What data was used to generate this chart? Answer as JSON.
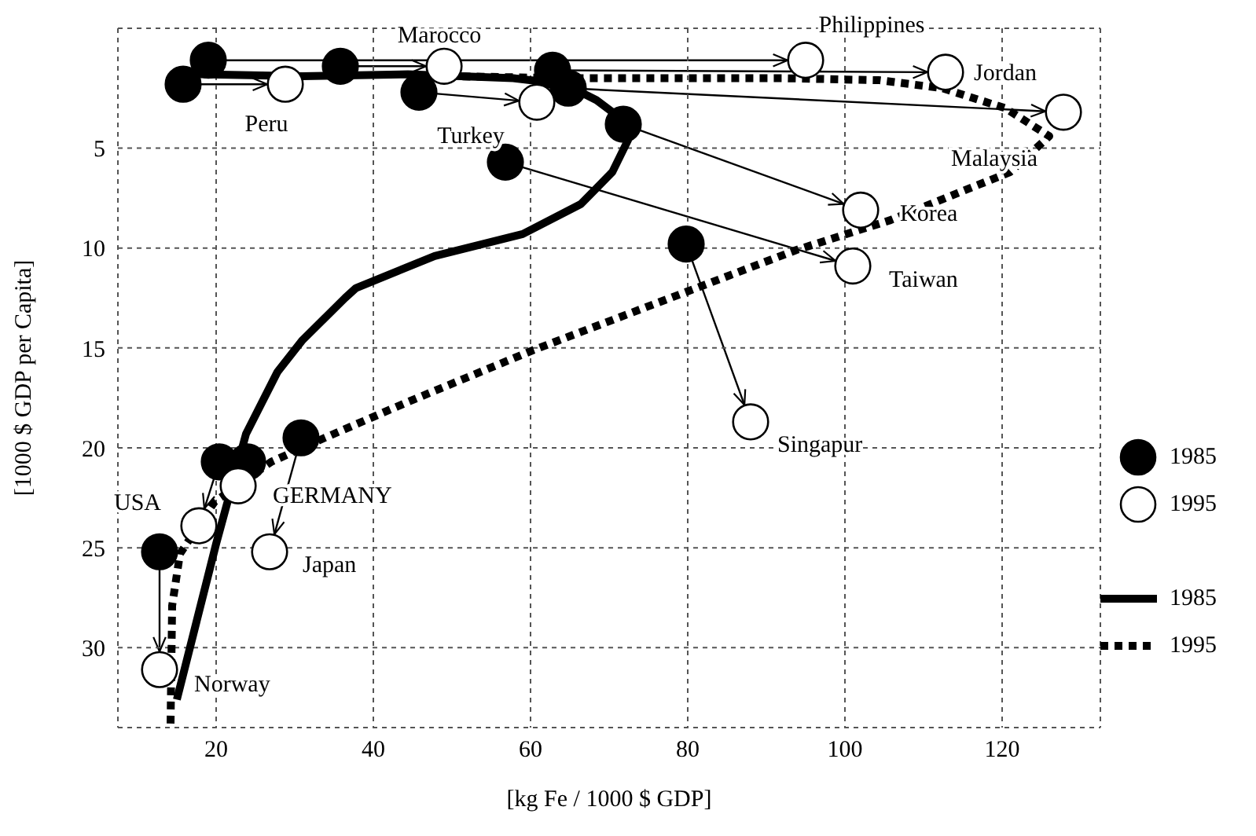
{
  "chart_data": {
    "type": "scatter",
    "xlabel": "[kg Fe / 1000 $ GDP]",
    "ylabel": "[1000 $ GDP per Capita]",
    "xlim": [
      7.5,
      132.5
    ],
    "xticks": [
      20,
      40,
      60,
      80,
      100,
      120
    ],
    "ylim": [
      34,
      -1
    ],
    "yticks": [
      5,
      10,
      15,
      20,
      25,
      30
    ],
    "grid": true,
    "legend": "right",
    "marker": "circle",
    "series": [
      {
        "name": "1985",
        "color": "#000000",
        "x": [
          19,
          15.8,
          35.8,
          45.8,
          62.8,
          64.8,
          71.8,
          56.8,
          79.8,
          30.8,
          20.4,
          24,
          12.8
        ],
        "values": [
          0.6,
          1.8,
          0.9,
          2.2,
          1.1,
          2,
          3.8,
          5.7,
          9.8,
          19.5,
          20.7,
          20.7,
          25.2
        ]
      },
      {
        "name": "1995",
        "color": "#ffffff",
        "x": [
          95,
          28.8,
          49,
          60.8,
          112.8,
          127.8,
          102,
          101,
          88,
          26.8,
          17.8,
          22.8,
          12.8
        ],
        "values": [
          0.6,
          1.8,
          0.9,
          2.7,
          1.2,
          3.2,
          8.1,
          10.9,
          18.7,
          25.2,
          23.9,
          21.9,
          31.1
        ],
        "value_labels": [
          "Philippines",
          "Peru",
          "Marocco",
          "Turkey",
          "Jordan",
          "Malaysia",
          "Korea",
          "Taiwan",
          "Singapur",
          "Japan",
          "USA",
          "GERMANY",
          "Norway"
        ]
      },
      {
        "name": "1985",
        "type": "line",
        "marker": "none",
        "line_style": "solid",
        "color": "#000000",
        "x": [
          15,
          20,
          23.8,
          27.8,
          31,
          36.4,
          37.8,
          47.8,
          59,
          66.4,
          70.4,
          72.4,
          71.8,
          68.4,
          64.4,
          57.8,
          44.4,
          31,
          17.8
        ],
        "values": [
          32.6,
          24.8,
          19.3,
          16.2,
          14.6,
          12.5,
          12,
          10.4,
          9.3,
          7.8,
          6.2,
          4.6,
          3.6,
          2.6,
          1.8,
          1.5,
          1.3,
          1.4,
          1.3
        ]
      },
      {
        "name": "1995",
        "type": "line",
        "marker": "none",
        "line_style": "dotted",
        "color": "#000000",
        "x": [
          14.2,
          14.4,
          15.4,
          19.8,
          27,
          33.8,
          44.4,
          60.4,
          93.8,
          105.8,
          121,
          126,
          120.4,
          112.4,
          104.4,
          92.4,
          80.4,
          64.4,
          50.4
        ],
        "values": [
          33.8,
          27.9,
          25.3,
          22.7,
          20.7,
          19.5,
          17.7,
          15.1,
          10.1,
          8.6,
          6.2,
          4.4,
          3,
          2,
          1.6,
          1.5,
          1.5,
          1.5,
          1.4
        ]
      }
    ]
  }
}
